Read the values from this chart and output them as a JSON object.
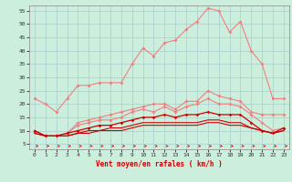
{
  "x": [
    0,
    1,
    2,
    3,
    4,
    5,
    6,
    7,
    8,
    9,
    10,
    11,
    12,
    13,
    14,
    15,
    16,
    17,
    18,
    19,
    20,
    21,
    22,
    23
  ],
  "line1": [
    22,
    20,
    17,
    22,
    27,
    27,
    28,
    28,
    28,
    35,
    41,
    38,
    43,
    44,
    48,
    51,
    56,
    55,
    47,
    51,
    40,
    35,
    22,
    22
  ],
  "line2": [
    10,
    8,
    8,
    9,
    13,
    14,
    15,
    16,
    17,
    18,
    19,
    20,
    20,
    18,
    21,
    21,
    25,
    23,
    22,
    21,
    17,
    16,
    16,
    16
  ],
  "line3": [
    10,
    8,
    8,
    9,
    12,
    13,
    14,
    14,
    15,
    17,
    18,
    17,
    19,
    17,
    19,
    20,
    22,
    20,
    20,
    19,
    16,
    13,
    10,
    11
  ],
  "line4": [
    10,
    8,
    8,
    9,
    10,
    11,
    12,
    12,
    13,
    14,
    15,
    15,
    16,
    15,
    16,
    16,
    17,
    16,
    16,
    16,
    13,
    10,
    9,
    11
  ],
  "line5": [
    9,
    8,
    8,
    8,
    9,
    10,
    10,
    11,
    11,
    12,
    13,
    13,
    13,
    13,
    13,
    13,
    14,
    14,
    13,
    13,
    11,
    10,
    9,
    10
  ],
  "line6": [
    9,
    8,
    8,
    8,
    9,
    9,
    10,
    10,
    10,
    11,
    12,
    12,
    12,
    12,
    12,
    12,
    13,
    13,
    12,
    12,
    11,
    10,
    9,
    10
  ],
  "color_light": "#f08080",
  "color_dark": "#cc0000",
  "bg_color": "#cceedd",
  "grid_color": "#aacccc",
  "xlabel": "Vent moyen/en rafales ( km/h )",
  "xlim": [
    -0.5,
    23.5
  ],
  "ylim": [
    3,
    57
  ],
  "yticks": [
    5,
    10,
    15,
    20,
    25,
    30,
    35,
    40,
    45,
    50,
    55
  ],
  "xticks": [
    0,
    1,
    2,
    3,
    4,
    5,
    6,
    7,
    8,
    9,
    10,
    11,
    12,
    13,
    14,
    15,
    16,
    17,
    18,
    19,
    20,
    21,
    22,
    23
  ]
}
